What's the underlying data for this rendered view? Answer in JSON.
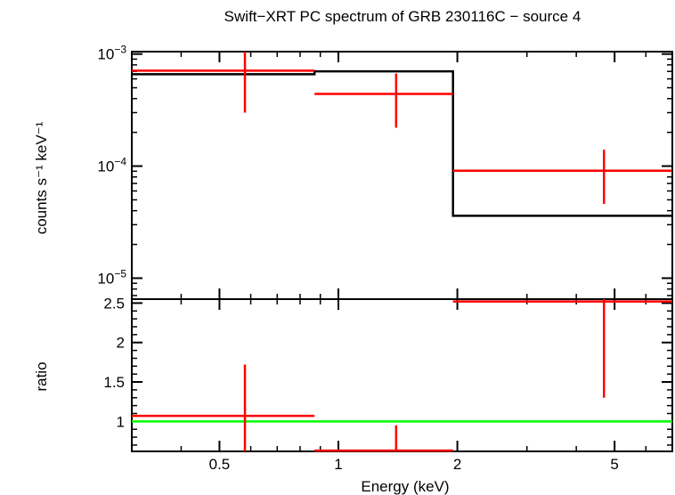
{
  "chart_data": [
    {
      "panel": "spectrum",
      "type": "line",
      "title": "Swift−XRT PC spectrum of GRB 230116C − source 4",
      "ylabel": "counts s⁻¹ keV⁻¹",
      "yscale": "log",
      "xscale": "log",
      "xlim": [
        0.3,
        7.0
      ],
      "ylim": [
        6.5e-06,
        0.00105
      ],
      "y_ticks": [
        {
          "value": 1e-05,
          "label": "10⁻⁵"
        },
        {
          "value": 0.0001,
          "label": "10⁻⁴"
        },
        {
          "value": 0.001,
          "label": "10⁻³"
        }
      ],
      "series": [
        {
          "kind": "data",
          "color": "#ff0000",
          "points": [
            {
              "xlo": 0.3,
              "xhi": 0.87,
              "x": 0.58,
              "y": 0.00071,
              "ylo": 0.0003,
              "yhi": 0.00105
            },
            {
              "xlo": 0.87,
              "xhi": 1.95,
              "x": 1.4,
              "y": 0.00044,
              "ylo": 0.00022,
              "yhi": 0.00067
            },
            {
              "xlo": 1.95,
              "xhi": 7.0,
              "x": 4.7,
              "y": 9.1e-05,
              "ylo": 4.6e-05,
              "yhi": 0.00014
            }
          ]
        },
        {
          "kind": "model",
          "color": "#000000",
          "steps": [
            {
              "xlo": 0.3,
              "xhi": 0.87,
              "y": 0.00066
            },
            {
              "xlo": 0.87,
              "xhi": 1.95,
              "y": 0.0007
            },
            {
              "xlo": 1.95,
              "xhi": 7.0,
              "y": 3.6e-05
            }
          ]
        }
      ]
    },
    {
      "panel": "ratio",
      "type": "line",
      "xlabel": "Energy (keV)",
      "ylabel": "ratio",
      "xscale": "log",
      "xlim": [
        0.3,
        7.0
      ],
      "ylim": [
        0.62,
        2.55
      ],
      "x_ticks": [
        {
          "value": 0.5,
          "label": "0.5"
        },
        {
          "value": 1,
          "label": "1"
        },
        {
          "value": 2,
          "label": "2"
        },
        {
          "value": 5,
          "label": "5"
        }
      ],
      "y_ticks": [
        {
          "value": 1,
          "label": "1"
        },
        {
          "value": 1.5,
          "label": "1.5"
        },
        {
          "value": 2,
          "label": "2"
        },
        {
          "value": 2.5,
          "label": "2.5"
        }
      ],
      "reference_line": {
        "y": 1,
        "color": "#00ff00"
      },
      "series": [
        {
          "kind": "ratio",
          "color": "#ff0000",
          "points": [
            {
              "xlo": 0.3,
              "xhi": 0.87,
              "x": 0.58,
              "y": 1.07,
              "ylo": 0.62,
              "yhi": 1.72
            },
            {
              "xlo": 0.87,
              "xhi": 1.95,
              "x": 1.4,
              "y": 0.63,
              "ylo": 0.62,
              "yhi": 0.95
            },
            {
              "xlo": 1.95,
              "xhi": 7.0,
              "x": 4.7,
              "y": 2.52,
              "ylo": 1.3,
              "yhi": 2.55
            }
          ]
        }
      ]
    }
  ]
}
